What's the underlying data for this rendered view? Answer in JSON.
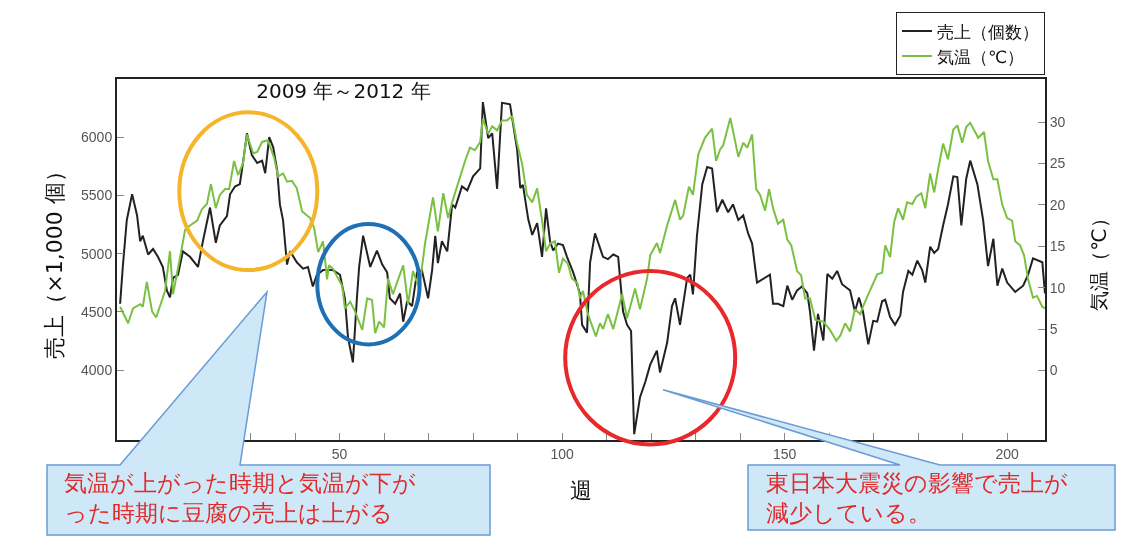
{
  "chart_data": {
    "type": "line",
    "title": "2009 年～2012 年",
    "xlabel": "週",
    "ylabel": "売上（×1,000 個）",
    "y2label": "気温（℃）",
    "annotations": [
      "気温が上がった時期と気温が下がった時期に豆腐の売上は上がる",
      "東日本大震災の影響で売上が減少している。"
    ],
    "xlim": [
      0,
      208.5
    ],
    "xticks": [
      {
        "value": 10,
        "label": null
      },
      {
        "value": 20,
        "label": null
      },
      {
        "value": 30,
        "label": null
      },
      {
        "value": 40,
        "label": null
      },
      50,
      {
        "value": 60,
        "label": null
      },
      {
        "value": 70,
        "label": null
      },
      {
        "value": 80,
        "label": null
      },
      {
        "value": 90,
        "label": null
      },
      100,
      {
        "value": 110,
        "label": null
      },
      {
        "value": 120,
        "label": null
      },
      {
        "value": 130,
        "label": null
      },
      {
        "value": 140,
        "label": null
      },
      150,
      {
        "value": 160,
        "label": null
      },
      {
        "value": 170,
        "label": null
      },
      {
        "value": 180,
        "label": null
      },
      {
        "value": 190,
        "label": null
      },
      200
    ],
    "ylim": [
      3400,
      6500
    ],
    "yticks": [
      4000,
      4500,
      5000,
      5500,
      6000
    ],
    "y2lim": [
      -8.4,
      35.2
    ],
    "y2ticks": [
      0,
      5,
      10,
      15,
      20,
      25,
      30
    ],
    "grid": false,
    "legend": "top right",
    "series": [
      {
        "name": "売上（個数）",
        "color": "#222222",
        "x": [
          0.7,
          1.3,
          2.2,
          3.4,
          4.5,
          5.2,
          5.8,
          7.0,
          8.1,
          9.2,
          10.3,
          11.2,
          11.9,
          12.6,
          13.7,
          14.8,
          16.4,
          18.2,
          19.3,
          20.9,
          22.2,
          23.1,
          24.7,
          25.4,
          26.5,
          27.6,
          28.3,
          29.2,
          30.3,
          31.5,
          32.6,
          33.3,
          34.2,
          35.1,
          36.0,
          36.6,
          37.3,
          38.2,
          38.9,
          40.4,
          41.8,
          42.9,
          44.0,
          44.9,
          46.3,
          48.5,
          50.1,
          51.2,
          51.9,
          53.0,
          53.9,
          54.4,
          55.3,
          56.9,
          58.4,
          59.6,
          60.7,
          61.3,
          62.5,
          63.6,
          64.3,
          65.2,
          66.3,
          67.4,
          68.5,
          69.9,
          70.8,
          71.5,
          72.1,
          73.0,
          74.2,
          75.3,
          76.0,
          77.5,
          78.7,
          80.0,
          81.6,
          82.2,
          83.4,
          84.3,
          85.4,
          86.5,
          88.3,
          89.9,
          90.6,
          91.2,
          92.4,
          93.3,
          94.4,
          95.5,
          96.4,
          97.3,
          98.0,
          99.1,
          100.2,
          101.1,
          102.5,
          104.0,
          104.5,
          105.6,
          106.3,
          107.4,
          109.2,
          110.3,
          111.5,
          112.6,
          113.7,
          114.6,
          115.5,
          116.2,
          117.5,
          118.7,
          119.8,
          121.3,
          122.0,
          123.6,
          124.7,
          125.4,
          126.5,
          128.1,
          128.8,
          129.4,
          130.3,
          131.5,
          132.6,
          133.7,
          134.8,
          136.0,
          137.3,
          138.4,
          139.6,
          140.7,
          141.8,
          142.7,
          143.8,
          146.7,
          147.4,
          148.5,
          149.7,
          150.6,
          151.7,
          152.8,
          153.9,
          155.1,
          155.7,
          156.6,
          157.5,
          158.7,
          159.6,
          160.7,
          161.8,
          162.9,
          164.0,
          164.7,
          165.8,
          166.7,
          167.6,
          168.8,
          169.9,
          170.8,
          171.9,
          172.6,
          173.7,
          174.8,
          176.0,
          176.6,
          177.8,
          178.7,
          179.8,
          180.9,
          181.6,
          182.7,
          183.6,
          184.5,
          185.6,
          186.7,
          187.9,
          188.8,
          189.7,
          190.8,
          191.7,
          193.3,
          194.6,
          195.7,
          196.9,
          197.8,
          198.9,
          200.0,
          201.8,
          203.6,
          204.7,
          205.8,
          207.9,
          208.5
        ],
        "values": [
          4570,
          4886,
          5289,
          5510,
          5330,
          5107,
          5154,
          4993,
          5040,
          4973,
          4886,
          4685,
          4624,
          4792,
          4819,
          5020,
          4973,
          4886,
          5107,
          5396,
          5094,
          5242,
          5322,
          5510,
          5577,
          5597,
          5779,
          6034,
          5846,
          5779,
          5799,
          5691,
          6000,
          5913,
          5711,
          5423,
          5289,
          4906,
          5020,
          4926,
          4872,
          4886,
          4718,
          4819,
          4859,
          4859,
          4819,
          4617,
          4282,
          4067,
          4617,
          4886,
          5154,
          4886,
          5027,
          4906,
          4839,
          4617,
          4570,
          4658,
          4416,
          4591,
          4550,
          4839,
          4859,
          4617,
          4859,
          5154,
          4919,
          5107,
          5020,
          5423,
          5396,
          5577,
          5544,
          5664,
          5732,
          6302,
          5993,
          6034,
          5557,
          6295,
          6282,
          5893,
          5564,
          5591,
          5295,
          5161,
          5262,
          4973,
          5389,
          5107,
          5027,
          5087,
          5074,
          4973,
          4839,
          4658,
          4389,
          4322,
          4926,
          5174,
          4973,
          4953,
          4993,
          4973,
          4503,
          4389,
          4336,
          3450,
          3765,
          3900,
          4047,
          4168,
          3980,
          4235,
          4550,
          4617,
          4389,
          4792,
          4819,
          4651,
          5154,
          5597,
          5745,
          5732,
          5356,
          5463,
          5356,
          5423,
          5289,
          5329,
          5174,
          5087,
          4752,
          4819,
          4570,
          4570,
          4550,
          4725,
          4604,
          4685,
          4718,
          4658,
          4503,
          4168,
          4483,
          4255,
          4826,
          4785,
          4852,
          4738,
          4705,
          4685,
          4503,
          4624,
          4503,
          4221,
          4423,
          4416,
          4591,
          4604,
          4456,
          4389,
          4470,
          4671,
          4852,
          4819,
          4940,
          4859,
          4752,
          5060,
          5007,
          5040,
          5242,
          5423,
          5664,
          5658,
          5242,
          5644,
          5799,
          5597,
          5289,
          4893,
          5128,
          4725,
          4872,
          4752,
          4671,
          4725,
          4819,
          4960,
          4926,
          4658
        ]
      },
      {
        "name": "気温（℃）",
        "color": "#7ac143",
        "axis": "y2",
        "x": [
          0.7,
          2.5,
          3.6,
          5.2,
          5.8,
          6.7,
          7.9,
          8.8,
          10.8,
          11.9,
          12.6,
          13.5,
          14.6,
          15.3,
          16.4,
          18.0,
          19.1,
          20.2,
          21.1,
          22.2,
          23.1,
          24.3,
          25.2,
          26.3,
          27.2,
          28.3,
          29.2,
          30.6,
          31.5,
          32.6,
          33.9,
          35.3,
          36.2,
          37.3,
          38.2,
          39.3,
          40.4,
          41.6,
          43.4,
          44.3,
          45.2,
          46.3,
          47.2,
          47.6,
          48.5,
          50.6,
          51.2,
          52.4,
          53.5,
          55.1,
          56.2,
          57.3,
          58.0,
          58.9,
          60.0,
          60.9,
          62.0,
          62.9,
          64.3,
          65.4,
          66.5,
          67.9,
          69.2,
          71.0,
          72.1,
          73.3,
          74.4,
          75.3,
          76.4,
          78.2,
          79.3,
          80.4,
          81.6,
          82.2,
          83.4,
          84.3,
          85.4,
          86.5,
          87.6,
          88.8,
          89.9,
          91.0,
          92.1,
          93.3,
          94.4,
          95.5,
          96.4,
          97.3,
          98.4,
          99.3,
          100.2,
          101.3,
          102.2,
          103.4,
          104.0,
          104.7,
          105.8,
          107.6,
          108.5,
          109.2,
          110.3,
          111.5,
          113.5,
          114.6,
          116.4,
          117.5,
          119.1,
          119.8,
          121.3,
          122.0,
          123.6,
          124.3,
          125.4,
          126.5,
          127.2,
          128.5,
          129.4,
          130.6,
          132.1,
          133.7,
          134.6,
          135.5,
          136.2,
          137.8,
          139.6,
          140.7,
          141.6,
          142.7,
          143.6,
          144.5,
          145.6,
          146.5,
          147.4,
          148.5,
          149.7,
          150.6,
          151.5,
          152.8,
          153.7,
          154.6,
          155.7,
          156.9,
          158.7,
          160.2,
          161.6,
          162.5,
          163.6,
          164.7,
          165.8,
          167.0,
          167.6,
          168.8,
          170.8,
          171.9,
          172.6,
          173.7,
          174.6,
          175.5,
          176.6,
          177.5,
          178.7,
          179.6,
          180.7,
          181.6,
          182.7,
          183.6,
          184.5,
          185.6,
          186.7,
          187.9,
          188.8,
          189.9,
          190.8,
          191.7,
          193.5,
          194.8,
          195.7,
          196.9,
          197.8,
          198.9,
          200.0,
          201.1,
          201.8,
          202.9,
          203.8,
          204.7,
          205.8,
          206.7,
          207.9,
          208.5
        ],
        "values": [
          7.7,
          5.7,
          7.5,
          8.0,
          7.7,
          10.7,
          7.1,
          6.4,
          9.6,
          14.4,
          9.2,
          11.8,
          14.9,
          17.0,
          17.5,
          18.1,
          19.5,
          20.1,
          22.5,
          19.6,
          21.2,
          21.9,
          21.9,
          25.3,
          23.6,
          25.0,
          28.5,
          26.2,
          26.4,
          27.6,
          27.8,
          25.7,
          23.4,
          23.8,
          22.8,
          22.9,
          22.0,
          19.2,
          18.4,
          17.2,
          14.3,
          15.6,
          11.0,
          12.7,
          12.3,
          10.2,
          7.5,
          8.3,
          7.1,
          4.9,
          8.7,
          8.5,
          4.5,
          5.9,
          5.2,
          11.1,
          9.2,
          10.6,
          12.7,
          8.0,
          12.0,
          9.9,
          15.3,
          20.9,
          16.8,
          21.4,
          18.4,
          20.3,
          22.2,
          25.3,
          26.9,
          26.6,
          27.6,
          30.4,
          28.6,
          29.5,
          29.0,
          30.2,
          30.2,
          30.7,
          27.4,
          25.0,
          21.2,
          20.3,
          22.0,
          18.1,
          14.4,
          15.3,
          15.6,
          11.8,
          13.5,
          12.9,
          11.1,
          10.6,
          8.7,
          9.6,
          6.8,
          4.1,
          5.7,
          5.0,
          6.8,
          5.0,
          9.2,
          6.3,
          9.9,
          7.4,
          11.1,
          13.9,
          15.4,
          14.2,
          17.5,
          18.7,
          20.6,
          18.2,
          18.7,
          22.2,
          21.2,
          26.1,
          28.1,
          29.2,
          25.3,
          26.7,
          27.2,
          30.5,
          25.8,
          27.5,
          26.9,
          28.5,
          21.9,
          21.2,
          19.3,
          21.9,
          19.6,
          17.7,
          18.2,
          15.8,
          15.1,
          12.0,
          11.5,
          8.7,
          8.7,
          6.1,
          5.9,
          4.9,
          3.6,
          4.2,
          5.7,
          4.7,
          7.4,
          6.8,
          7.7,
          9.2,
          11.6,
          11.8,
          15.1,
          13.7,
          17.9,
          19.6,
          18.2,
          20.3,
          20.1,
          21.0,
          21.4,
          19.6,
          23.8,
          21.5,
          24.3,
          27.4,
          25.5,
          29.1,
          29.6,
          27.5,
          29.4,
          29.9,
          28.1,
          28.8,
          25.3,
          23.1,
          23.1,
          20.0,
          18.4,
          18.1,
          15.6,
          15.1,
          13.9,
          11.0,
          8.8,
          9.0,
          7.7,
          7.5
        ]
      }
    ]
  }
}
